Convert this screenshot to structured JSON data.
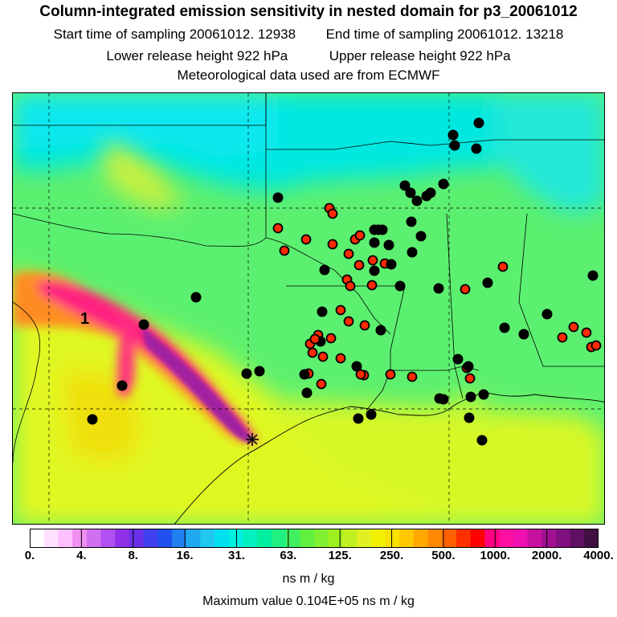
{
  "header": {
    "title": "Column-integrated emission sensitivity in nested domain for p3_20061012",
    "start_label": "Start time of sampling 20061012. 12938",
    "end_label": "End time of sampling 20061012. 13218",
    "lower_label": "Lower release height  922 hPa",
    "upper_label": "Upper release height  922 hPa",
    "met_label": "Meteorological data used are from ECMWF"
  },
  "map": {
    "plume_label": "1",
    "receptor_icon": "star-icon",
    "colors": {
      "low": "#00e8e8",
      "mid": "#40ff40",
      "yellowgreen": "#d8ff20",
      "yellow": "#ffe800",
      "orange": "#ff8c00",
      "red": "#ff2020",
      "pink": "#ff1493",
      "magenta": "#c000b0",
      "purple": "#6a2a7a",
      "dot_black": "#000000",
      "dot_red": "#ff2a00"
    }
  },
  "colorbar": {
    "colors": [
      "#ffffff",
      "#ffe0ff",
      "#ffc0ff",
      "#f090f0",
      "#d070f0",
      "#b050f0",
      "#9030e8",
      "#6a30e8",
      "#4040f0",
      "#2050f0",
      "#2080f0",
      "#20a8f0",
      "#20c8f0",
      "#00e0f0",
      "#00f0e0",
      "#00f0c0",
      "#00f0a0",
      "#20f080",
      "#40f060",
      "#60f040",
      "#80f030",
      "#a0f020",
      "#c0f020",
      "#e0f020",
      "#f0f000",
      "#f8e000",
      "#ffc800",
      "#ffa800",
      "#ff8800",
      "#ff6000",
      "#ff3000",
      "#ff0000",
      "#ff0080",
      "#ff10a0",
      "#f010b0",
      "#c810a0",
      "#a01090",
      "#801080",
      "#601060",
      "#401040"
    ],
    "tick_labels": [
      "0.",
      "4.",
      "8.",
      "16.",
      "31.",
      "63.",
      "125.",
      "250.",
      "500.",
      "1000.",
      "2000.",
      "4000."
    ],
    "units": "ns m / kg",
    "max_value": "Maximum value  0.104E+05 ns m / kg"
  }
}
